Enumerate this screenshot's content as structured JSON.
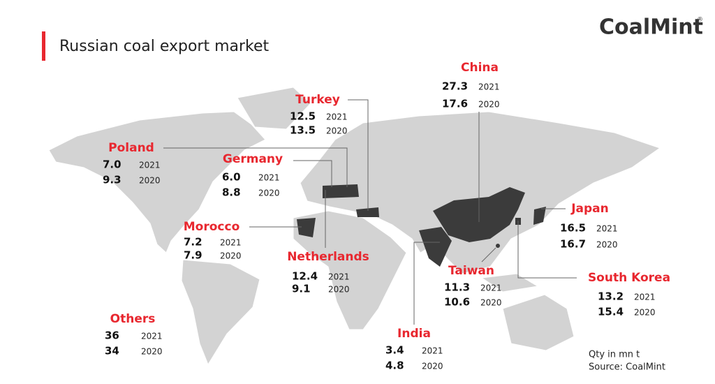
{
  "header": {
    "title": "Russian coal export market",
    "logo": "CoalMint",
    "logo_mark": "®"
  },
  "countries": [
    {
      "name": "China",
      "value_2021": "27.3",
      "year_2021": "2021",
      "value_2020": "17.6",
      "year_2020": "2020"
    },
    {
      "name": "Turkey",
      "value_2021": "12.5",
      "year_2021": "2021",
      "value_2020": "13.5",
      "year_2020": "2020"
    },
    {
      "name": "Poland",
      "value_2021": "7.0",
      "year_2021": "2021",
      "value_2020": "9.3",
      "year_2020": "2020"
    },
    {
      "name": "Germany",
      "value_2021": "6.0",
      "year_2021": "2021",
      "value_2020": "8.8",
      "year_2020": "2020"
    },
    {
      "name": "Morocco",
      "value_2021": "7.2",
      "year_2021": "2021",
      "value_2020": "7.9",
      "year_2020": "2020"
    },
    {
      "name": "Netherlands",
      "value_2021": "12.4",
      "year_2021": "2021",
      "value_2020": "9.1",
      "year_2020": "2020"
    },
    {
      "name": "Taiwan",
      "value_2021": "11.3",
      "year_2021": "2021",
      "value_2020": "10.6",
      "year_2020": "2020"
    },
    {
      "name": "India",
      "value_2021": "3.4",
      "year_2021": "2021",
      "value_2020": "4.8",
      "year_2020": "2020"
    },
    {
      "name": "Japan",
      "value_2021": "16.5",
      "year_2021": "2021",
      "value_2020": "16.7",
      "year_2020": "2020"
    },
    {
      "name": "South Korea",
      "value_2021": "13.2",
      "year_2021": "2021",
      "value_2020": "15.4",
      "year_2020": "2020"
    },
    {
      "name": "Others",
      "value_2021": "36",
      "year_2021": "2021",
      "value_2020": "34",
      "year_2020": "2020"
    }
  ],
  "footer": {
    "unit_note": "Qty in mn t",
    "source": "Source: CoalMint"
  }
}
